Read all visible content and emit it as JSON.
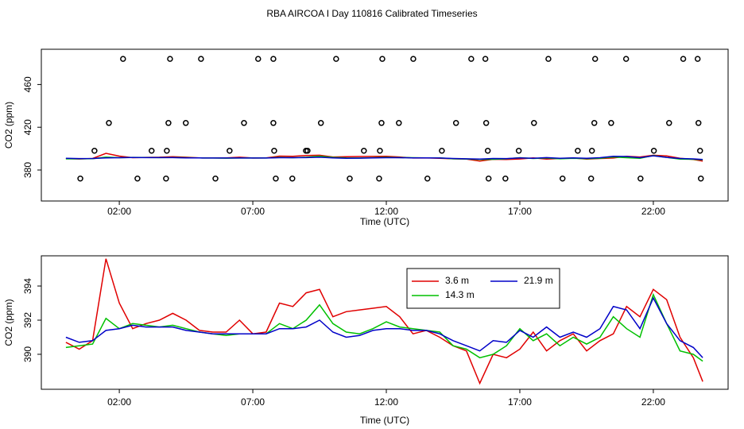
{
  "chart_data": [
    {
      "type": "scatter",
      "title": "RBA AIRCOA I  Day 110816  Calibrated Timeseries",
      "x_label": "Time (UTC)",
      "y_label": "CO2 (ppm)",
      "xlim": [
        -0.92,
        24.8
      ],
      "xticks": [
        {
          "value": 2,
          "label": "02:00"
        },
        {
          "value": 7,
          "label": "07:00"
        },
        {
          "value": 12,
          "label": "12:00"
        },
        {
          "value": 17,
          "label": "17:00"
        },
        {
          "value": 22,
          "label": "22:00"
        }
      ],
      "ylim": [
        351,
        493
      ],
      "yticks": [
        380,
        420,
        460
      ],
      "color": "#000000",
      "x": [
        2.14,
        3.9,
        5.06,
        7.2,
        7.77,
        10.12,
        11.85,
        13.01,
        15.18,
        15.71,
        18.07,
        19.82,
        20.98,
        23.12,
        23.66,
        1.61,
        3.84,
        4.49,
        6.67,
        7.77,
        9.55,
        11.82,
        12.47,
        14.61,
        15.74,
        17.53,
        19.79,
        20.42,
        22.59,
        23.69,
        1.07,
        3.21,
        3.78,
        6.13,
        7.8,
        8.99,
        9.05,
        11.16,
        11.76,
        14.08,
        15.8,
        16.96,
        19.17,
        19.7,
        22.02,
        23.75,
        0.54,
        2.68,
        3.75,
        5.6,
        7.86,
        8.48,
        10.63,
        11.73,
        13.54,
        15.83,
        16.46,
        18.6,
        19.67,
        21.52,
        23.78
      ],
      "y": [
        484,
        484,
        484,
        484,
        484,
        484,
        484,
        484,
        484,
        484,
        484,
        484,
        484,
        484,
        484,
        424,
        424,
        424,
        424,
        424,
        424,
        424,
        424,
        424,
        424,
        424,
        424,
        424,
        424,
        424,
        398,
        398,
        398,
        398,
        398,
        398,
        398,
        398,
        398,
        398,
        398,
        398,
        398,
        398,
        398,
        398,
        372,
        372,
        372,
        372,
        372,
        372,
        372,
        372,
        372,
        372,
        372,
        372,
        372,
        372,
        372
      ]
    },
    {
      "type": "line",
      "x_label": "Time (UTC)",
      "y_label": "CO2 (ppm)",
      "xlim": [
        -0.92,
        24.8
      ],
      "xticks": [
        {
          "value": 2,
          "label": "02:00"
        },
        {
          "value": 7,
          "label": "07:00"
        },
        {
          "value": 12,
          "label": "12:00"
        },
        {
          "value": 17,
          "label": "17:00"
        },
        {
          "value": 22,
          "label": "22:00"
        }
      ],
      "ylim": [
        387.95,
        395.77
      ],
      "yticks": [
        390,
        392,
        394
      ],
      "legend": "top",
      "x": [
        0,
        0.5,
        1,
        1.5,
        2,
        2.5,
        3,
        3.5,
        4,
        4.5,
        5,
        5.5,
        6,
        6.5,
        7,
        7.5,
        8,
        8.5,
        9,
        9.5,
        10,
        10.5,
        11,
        11.5,
        12,
        12.5,
        13,
        13.5,
        14,
        14.5,
        15,
        15.5,
        16,
        16.5,
        17,
        17.5,
        18,
        18.5,
        19,
        19.5,
        20,
        20.5,
        21,
        21.5,
        22,
        22.5,
        23,
        23.5,
        23.85
      ],
      "series": [
        {
          "name": "3.6 m",
          "color": "#e00000",
          "values": [
            390.7,
            390.3,
            390.8,
            395.6,
            393.0,
            391.5,
            391.8,
            392.0,
            392.4,
            392.0,
            391.4,
            391.3,
            391.3,
            392.0,
            391.2,
            391.3,
            393.0,
            392.8,
            393.6,
            393.8,
            392.2,
            392.5,
            392.6,
            392.7,
            392.8,
            392.2,
            391.2,
            391.4,
            391.0,
            390.5,
            390.2,
            388.3,
            390.0,
            389.8,
            390.3,
            391.3,
            390.2,
            390.8,
            391.2,
            390.2,
            390.8,
            391.2,
            392.8,
            392.2,
            393.8,
            393.2,
            391.0,
            389.8,
            388.4
          ]
        },
        {
          "name": "14.3 m",
          "color": "#00c000",
          "values": [
            390.4,
            390.5,
            390.6,
            392.1,
            391.5,
            391.8,
            391.7,
            391.6,
            391.7,
            391.5,
            391.3,
            391.2,
            391.1,
            391.2,
            391.2,
            391.2,
            391.8,
            391.5,
            392.0,
            392.9,
            391.8,
            391.3,
            391.2,
            391.5,
            391.9,
            391.6,
            391.5,
            391.4,
            391.3,
            390.5,
            390.3,
            389.8,
            390.0,
            390.5,
            391.5,
            390.8,
            391.2,
            390.5,
            391.0,
            390.6,
            391.0,
            392.2,
            391.5,
            391.0,
            393.5,
            391.8,
            390.2,
            390.0,
            389.6
          ]
        },
        {
          "name": "21.9 m",
          "color": "#0000c8",
          "values": [
            391.0,
            390.7,
            390.8,
            391.4,
            391.5,
            391.7,
            391.6,
            391.6,
            391.6,
            391.4,
            391.3,
            391.2,
            391.2,
            391.2,
            391.2,
            391.2,
            391.5,
            391.5,
            391.6,
            392.0,
            391.3,
            391.0,
            391.1,
            391.4,
            391.5,
            391.5,
            391.4,
            391.4,
            391.2,
            390.8,
            390.5,
            390.2,
            390.8,
            390.7,
            391.4,
            391.0,
            391.6,
            391.0,
            391.3,
            391.0,
            391.5,
            392.8,
            392.6,
            391.5,
            393.3,
            391.8,
            390.8,
            390.4,
            389.8
          ]
        }
      ]
    }
  ]
}
